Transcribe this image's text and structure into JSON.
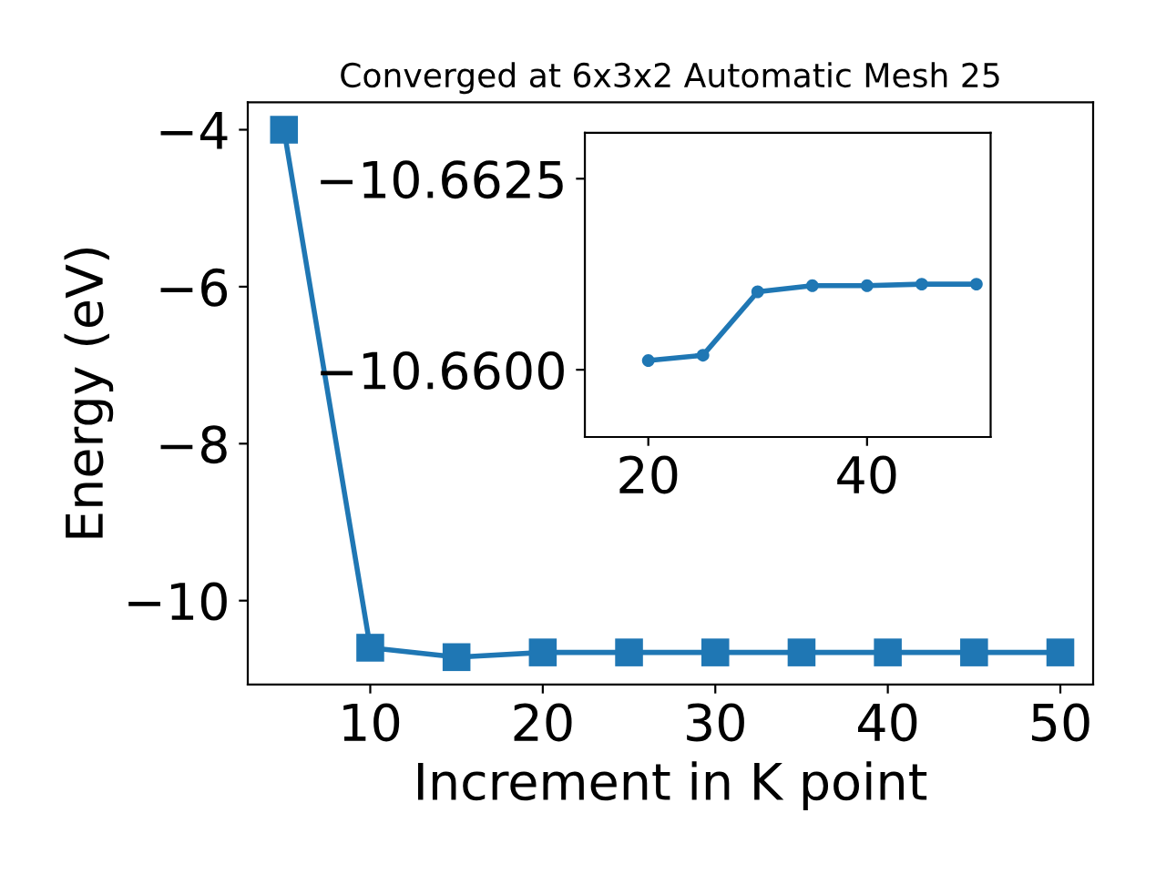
{
  "chart_data": [
    {
      "type": "line",
      "title": "Converged at 6x3x2 Automatic Mesh 25",
      "xlabel": "Increment in K point",
      "ylabel": "Energy (eV)",
      "x": [
        5,
        10,
        15,
        20,
        25,
        30,
        35,
        40,
        45,
        50
      ],
      "series": [
        {
          "color": "#1f77b4",
          "values": [
            -4.0,
            -10.6,
            -10.72,
            -10.66,
            -10.66,
            -10.66,
            -10.66,
            -10.66,
            -10.66,
            -10.66
          ]
        }
      ],
      "marker": "square",
      "xlim": [
        2.9,
        51.9
      ],
      "ylim": [
        -11.07,
        -3.65
      ],
      "xticks": [
        10,
        20,
        30,
        40,
        50
      ],
      "yticks": [
        {
          "value": -4,
          "label": "−4"
        },
        {
          "value": -6,
          "label": "−6"
        },
        {
          "value": -8,
          "label": "−8"
        },
        {
          "value": -10,
          "label": "−10"
        }
      ],
      "grid": false,
      "legend": false
    },
    {
      "type": "line",
      "x": [
        20,
        25,
        30,
        35,
        40,
        45,
        50
      ],
      "series": [
        {
          "color": "#1f77b4",
          "values": [
            -10.66012,
            -10.66019,
            -10.66102,
            -10.6611,
            -10.6611,
            -10.66112,
            -10.66112
          ]
        }
      ],
      "marker": "circle",
      "xlim": [
        14.2,
        51.3
      ],
      "ylim": [
        -10.65912,
        -10.6631
      ],
      "xticks": [
        20,
        40
      ],
      "yticks": [
        {
          "value": -10.6625,
          "label": "−10.6625"
        },
        {
          "value": -10.66,
          "label": "−10.6600"
        }
      ],
      "grid": false,
      "legend": false
    }
  ]
}
